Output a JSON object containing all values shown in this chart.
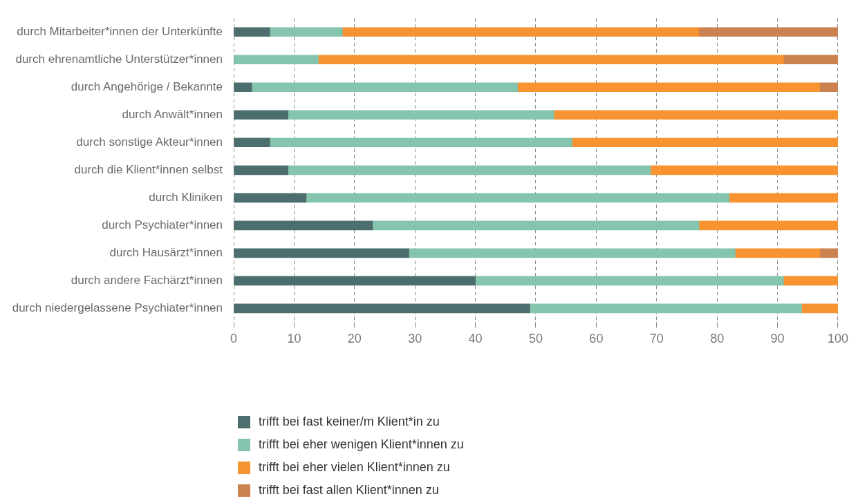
{
  "chart_data": {
    "type": "bar",
    "orientation": "horizontal",
    "stacked": true,
    "categories": [
      "durch Mitarbeiter*innen der Unterkünfte",
      "durch ehrenamtliche Unterstützer*innen",
      "durch Angehörige / Bekannte",
      "durch Anwält*innen",
      "durch sonstige Akteur*innen",
      "durch die Klient*innen selbst",
      "durch Kliniken",
      "durch Psychiater*innen",
      "durch Hausärzt*innen",
      "durch andere Fachärzt*innen",
      "durch niedergelassene Psychiater*innen"
    ],
    "series": [
      {
        "name": "trifft bei fast keiner/m Klient*in zu",
        "color": "#4d6e6e",
        "values": [
          6,
          0,
          3,
          9,
          6,
          9,
          12,
          23,
          29,
          40,
          49
        ]
      },
      {
        "name": "trifft bei eher wenigen Klient*innen zu",
        "color": "#85c4ad",
        "values": [
          12,
          14,
          44,
          44,
          50,
          60,
          70,
          54,
          54,
          51,
          45
        ]
      },
      {
        "name": "trifft bei eher vielen Klient*innen zu",
        "color": "#f79431",
        "values": [
          59,
          77,
          50,
          47,
          44,
          31,
          18,
          23,
          14,
          9,
          6
        ]
      },
      {
        "name": "trifft bei fast allen Klient*innen zu",
        "color": "#cc8150",
        "values": [
          23,
          9,
          3,
          0,
          0,
          0,
          0,
          0,
          3,
          0,
          0
        ]
      }
    ],
    "xlim": [
      0,
      100
    ],
    "xticks": [
      0,
      10,
      20,
      30,
      40,
      50,
      60,
      70,
      80,
      90,
      100
    ],
    "grid": "x",
    "legend": "bottom"
  }
}
